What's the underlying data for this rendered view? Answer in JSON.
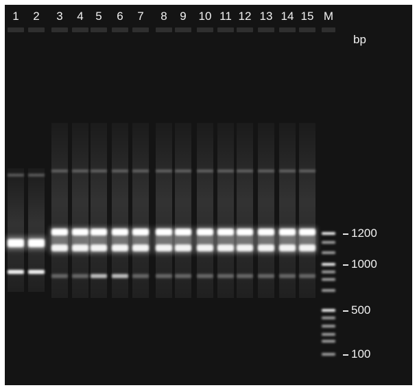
{
  "figure": {
    "lane_labels": [
      "1",
      "2",
      "3",
      "4",
      "5",
      "6",
      "7",
      "8",
      "9",
      "10",
      "11",
      "12",
      "13",
      "14",
      "15",
      "M"
    ],
    "size_unit": "bp",
    "marker_sizes": [
      "1200",
      "1000",
      "500",
      "100"
    ]
  },
  "colors": {
    "gel_background": "#141414",
    "band": "#ffffff",
    "text": "#f2f2f2"
  }
}
